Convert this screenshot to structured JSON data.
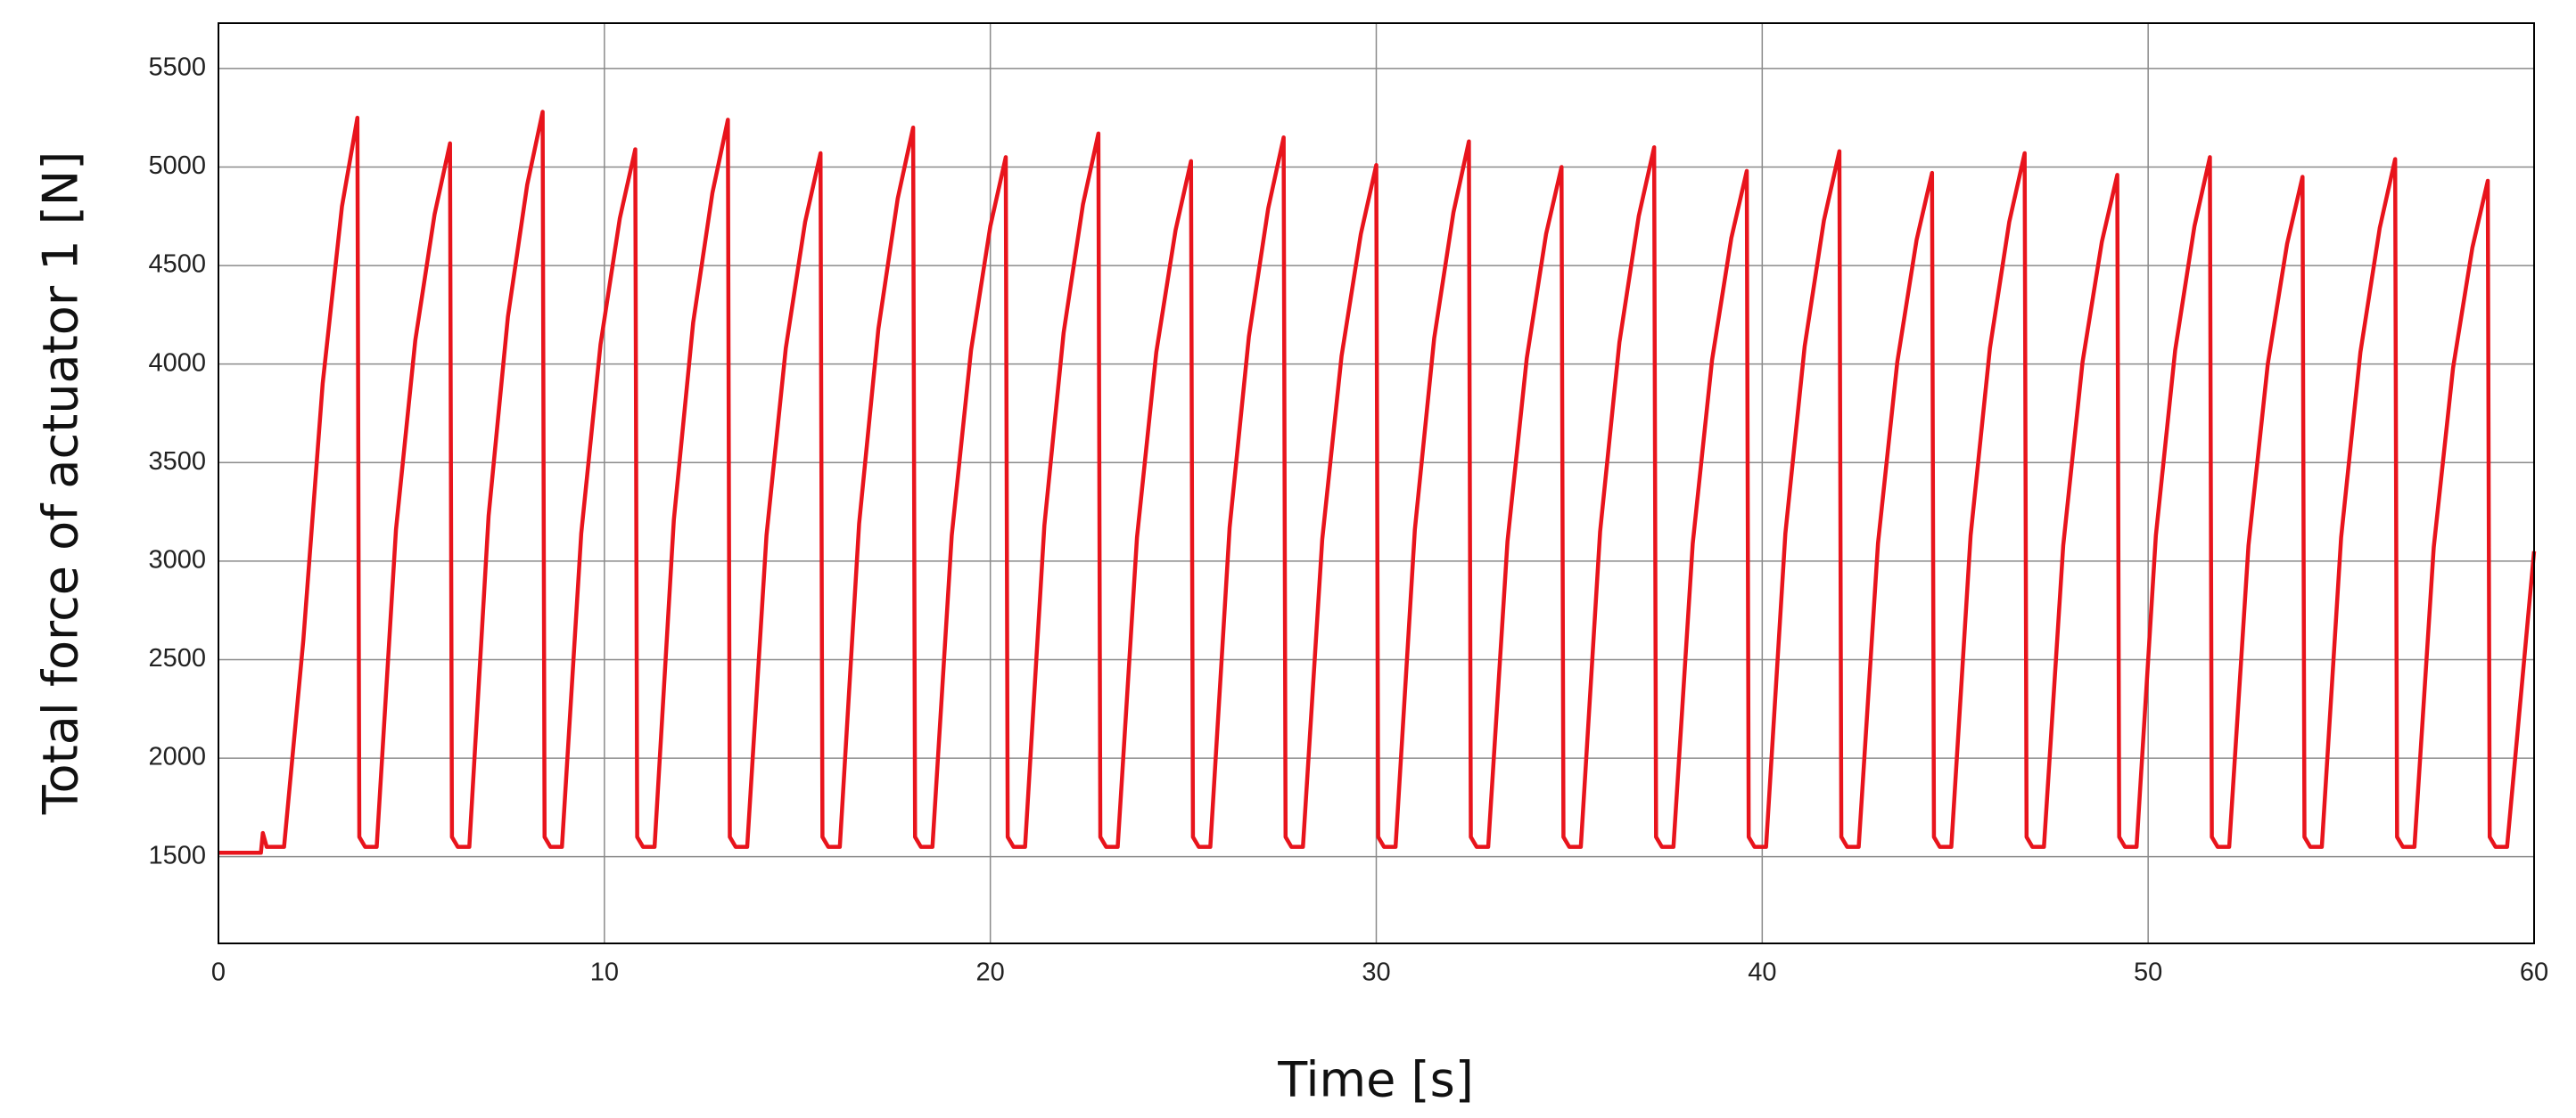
{
  "chart_data": {
    "type": "line",
    "xlabel": "Time [s]",
    "ylabel": "Total force of actuator 1 [N]",
    "xlim": [
      0,
      60
    ],
    "ylim": [
      1060,
      5730
    ],
    "xticks": [
      0,
      10,
      20,
      30,
      40,
      50,
      60
    ],
    "yticks": [
      1500,
      2000,
      2500,
      3000,
      3500,
      4000,
      4500,
      5000,
      5500
    ],
    "grid": true,
    "x": [
      0,
      1.1,
      1.15,
      1.25,
      1.7,
      2.2,
      2.7,
      3.2,
      3.6,
      3.65,
      3.8,
      4.1,
      4.6,
      5.1,
      5.6,
      6.0,
      6.05,
      6.2,
      6.5,
      7.0,
      7.5,
      8.0,
      8.4,
      8.45,
      8.6,
      8.9,
      9.4,
      9.9,
      10.4,
      10.8,
      10.85,
      11.0,
      11.3,
      11.8,
      12.3,
      12.8,
      13.2,
      13.25,
      13.4,
      13.7,
      14.2,
      14.7,
      15.2,
      15.6,
      15.65,
      15.8,
      16.1,
      16.6,
      17.1,
      17.6,
      18.0,
      18.05,
      18.2,
      18.5,
      19.0,
      19.5,
      20.0,
      20.4,
      20.45,
      20.6,
      20.9,
      21.4,
      21.9,
      22.4,
      22.8,
      22.85,
      23.0,
      23.3,
      23.8,
      24.3,
      24.8,
      25.2,
      25.25,
      25.4,
      25.7,
      26.2,
      26.7,
      27.2,
      27.6,
      27.65,
      27.8,
      28.1,
      28.6,
      29.1,
      29.6,
      30.0,
      30.05,
      30.2,
      30.5,
      31.0,
      31.5,
      32.0,
      32.4,
      32.45,
      32.6,
      32.9,
      33.4,
      33.9,
      34.4,
      34.8,
      34.85,
      35.0,
      35.3,
      35.8,
      36.3,
      36.8,
      37.2,
      37.25,
      37.4,
      37.7,
      38.2,
      38.7,
      39.2,
      39.6,
      39.65,
      39.8,
      40.1,
      40.6,
      41.1,
      41.6,
      42.0,
      42.05,
      42.2,
      42.5,
      43.0,
      43.5,
      44.0,
      44.4,
      44.45,
      44.6,
      44.9,
      45.4,
      45.9,
      46.4,
      46.8,
      46.85,
      47.0,
      47.3,
      47.8,
      48.3,
      48.8,
      49.2,
      49.25,
      49.4,
      49.7,
      50.2,
      50.7,
      51.2,
      51.6,
      51.65,
      51.8,
      52.1,
      52.6,
      53.1,
      53.6,
      54.0,
      54.05,
      54.2,
      54.5,
      55.0,
      55.5,
      56.0,
      56.4,
      56.45,
      56.6,
      56.9,
      57.4,
      57.9,
      58.4,
      58.8,
      58.85,
      59.0,
      59.3,
      60.0
    ],
    "series": [
      {
        "color": "#e8141c",
        "values": [
          1520,
          1520,
          1620,
          1550,
          1550,
          2600,
          3900,
          4800,
          5250,
          1600,
          1550,
          1550,
          3160,
          4120,
          4760,
          5120,
          1600,
          1550,
          1550,
          3230,
          4240,
          4910,
          5280,
          1600,
          1550,
          1550,
          3140,
          4100,
          4740,
          5090,
          1600,
          1550,
          1550,
          3210,
          4210,
          4870,
          5240,
          1600,
          1550,
          1550,
          3130,
          4080,
          4720,
          5070,
          1600,
          1550,
          1550,
          3190,
          4180,
          4840,
          5200,
          1600,
          1550,
          1550,
          3130,
          4070,
          4700,
          5050,
          1600,
          1550,
          1550,
          3180,
          4160,
          4810,
          5170,
          1600,
          1550,
          1550,
          3120,
          4060,
          4680,
          5030,
          1600,
          1550,
          1550,
          3170,
          4140,
          4790,
          5150,
          1600,
          1550,
          1550,
          3110,
          4040,
          4660,
          5010,
          1600,
          1550,
          1550,
          3160,
          4130,
          4770,
          5130,
          1600,
          1550,
          1550,
          3100,
          4030,
          4660,
          5000,
          1600,
          1550,
          1550,
          3150,
          4110,
          4750,
          5100,
          1600,
          1550,
          1550,
          3090,
          4020,
          4640,
          4980,
          1600,
          1550,
          1550,
          3140,
          4090,
          4730,
          5080,
          1600,
          1550,
          1550,
          3090,
          4010,
          4630,
          4970,
          1600,
          1550,
          1550,
          3130,
          4080,
          4720,
          5070,
          1600,
          1550,
          1550,
          3080,
          4010,
          4620,
          4960,
          1600,
          1550,
          1550,
          3130,
          4070,
          4700,
          5050,
          1600,
          1550,
          1550,
          3080,
          4000,
          4610,
          4950,
          1600,
          1550,
          1550,
          3120,
          4060,
          4690,
          5040,
          1600,
          1550,
          1550,
          3070,
          3980,
          4590,
          4930,
          1600,
          1550,
          1550,
          3050
        ]
      }
    ]
  }
}
